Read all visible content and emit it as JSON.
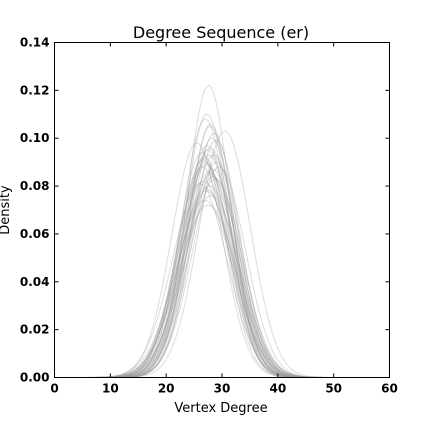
{
  "chart_data": {
    "type": "line",
    "title": "Degree Sequence (er)",
    "xlabel": "Vertex Degree",
    "ylabel": "Density",
    "xlim": [
      0,
      60
    ],
    "ylim": [
      0,
      0.14
    ],
    "x_ticks": [
      0,
      10,
      20,
      30,
      40,
      50,
      60
    ],
    "y_ticks": [
      0.0,
      0.02,
      0.04,
      0.06,
      0.08,
      0.1,
      0.12,
      0.14
    ],
    "y_tick_labels": [
      "0.00",
      "0.02",
      "0.04",
      "0.06",
      "0.08",
      "0.10",
      "0.12",
      "0.14"
    ],
    "grid": false,
    "line_color": "#999999",
    "series": [
      {
        "mean": 27.0,
        "sd": 4.6,
        "peak": 0.09
      },
      {
        "mean": 27.5,
        "sd": 4.4,
        "peak": 0.095
      },
      {
        "mean": 28.0,
        "sd": 4.7,
        "peak": 0.085
      },
      {
        "mean": 26.8,
        "sd": 4.5,
        "peak": 0.092
      },
      {
        "mean": 27.8,
        "sd": 4.9,
        "peak": 0.08
      },
      {
        "mean": 28.2,
        "sd": 4.3,
        "peak": 0.1
      },
      {
        "mean": 27.2,
        "sd": 5.0,
        "peak": 0.078
      },
      {
        "mean": 26.5,
        "sd": 4.6,
        "peak": 0.088
      },
      {
        "mean": 28.5,
        "sd": 4.5,
        "peak": 0.093
      },
      {
        "mean": 27.6,
        "sd": 3.9,
        "peak": 0.122
      },
      {
        "mean": 27.0,
        "sd": 4.2,
        "peak": 0.108
      },
      {
        "mean": 28.8,
        "sd": 4.8,
        "peak": 0.083
      },
      {
        "mean": 26.9,
        "sd": 5.2,
        "peak": 0.074
      },
      {
        "mean": 27.9,
        "sd": 4.1,
        "peak": 0.105
      },
      {
        "mean": 28.3,
        "sd": 4.6,
        "peak": 0.087
      },
      {
        "mean": 27.4,
        "sd": 4.4,
        "peak": 0.097
      },
      {
        "mean": 26.7,
        "sd": 4.8,
        "peak": 0.082
      },
      {
        "mean": 28.1,
        "sd": 5.1,
        "peak": 0.076
      },
      {
        "mean": 27.3,
        "sd": 4.0,
        "peak": 0.11
      },
      {
        "mean": 29.0,
        "sd": 4.5,
        "peak": 0.09
      },
      {
        "mean": 26.4,
        "sd": 4.3,
        "peak": 0.094
      },
      {
        "mean": 27.7,
        "sd": 4.7,
        "peak": 0.086
      },
      {
        "mean": 28.6,
        "sd": 4.2,
        "peak": 0.102
      },
      {
        "mean": 27.1,
        "sd": 4.9,
        "peak": 0.079
      },
      {
        "mean": 27.9,
        "sd": 4.4,
        "peak": 0.096
      },
      {
        "mean": 28.4,
        "sd": 4.8,
        "peak": 0.084
      },
      {
        "mean": 26.6,
        "sd": 4.5,
        "peak": 0.091
      },
      {
        "mean": 27.5,
        "sd": 5.3,
        "peak": 0.072
      },
      {
        "mean": 28.0,
        "sd": 4.0,
        "peak": 0.106
      },
      {
        "mean": 27.2,
        "sd": 4.6,
        "peak": 0.089
      },
      {
        "mean": 30.5,
        "sd": 4.6,
        "peak": 0.103
      },
      {
        "mean": 25.5,
        "sd": 4.5,
        "peak": 0.098
      },
      {
        "mean": 29.5,
        "sd": 4.7,
        "peak": 0.088
      },
      {
        "mean": 26.0,
        "sd": 4.9,
        "peak": 0.081
      },
      {
        "mean": 28.9,
        "sd": 4.3,
        "peak": 0.099
      },
      {
        "mean": 27.6,
        "sd": 4.5,
        "peak": 0.093
      }
    ]
  }
}
